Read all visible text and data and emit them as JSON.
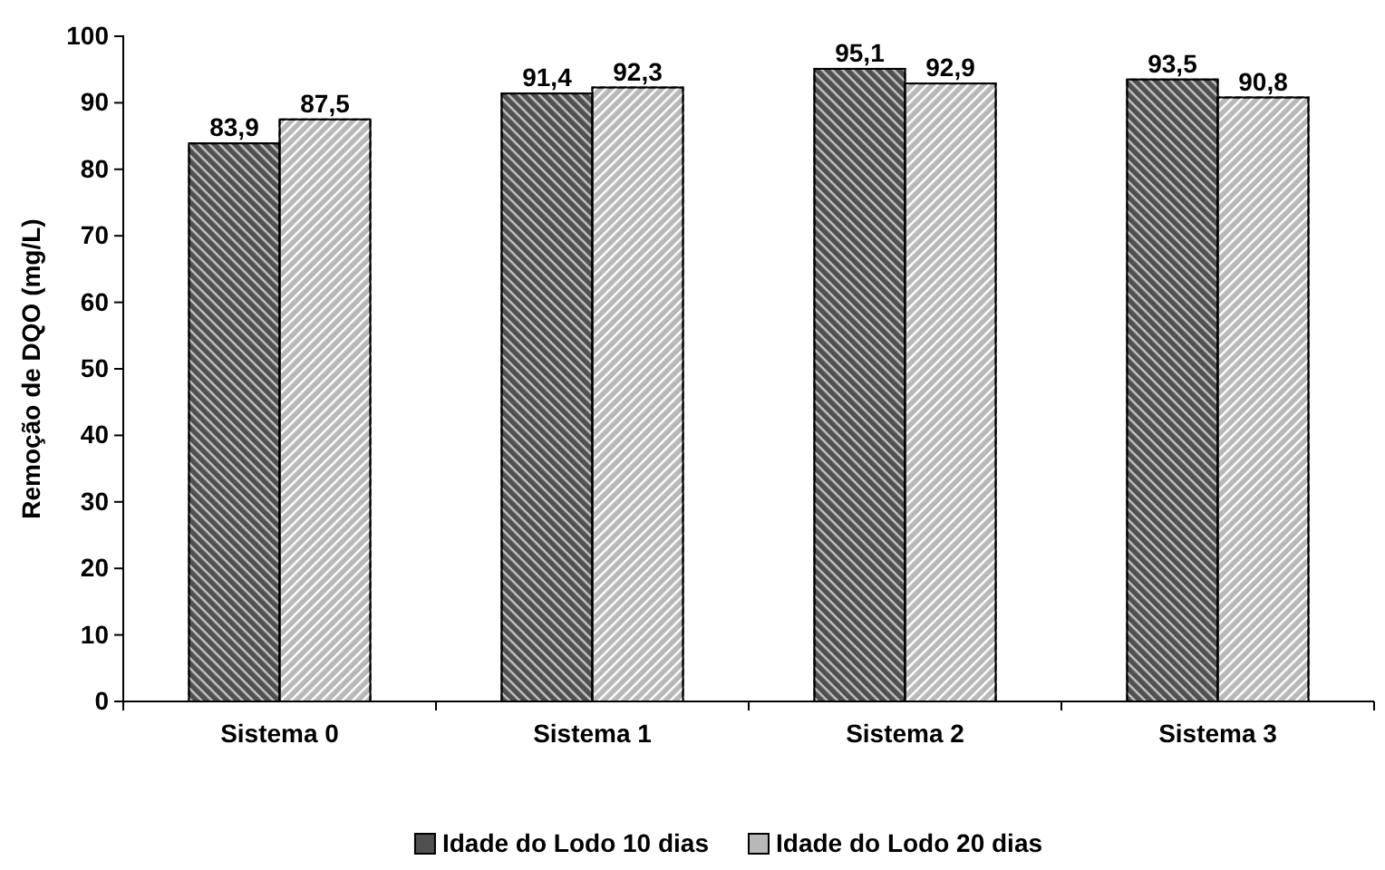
{
  "chart_data": {
    "type": "bar",
    "ylabel": "Remoção de DQO (mg/L)",
    "categories": [
      "Sistema 0",
      "Sistema 1",
      "Sistema 2",
      "Sistema 3"
    ],
    "series": [
      {
        "name": "Idade do Lodo 10 dias",
        "color": "#505050",
        "values": [
          83.9,
          91.4,
          95.1,
          93.5
        ],
        "value_labels": [
          "83,9",
          "91,4",
          "95,1",
          "93,5"
        ]
      },
      {
        "name": "Idade do Lodo 20 dias",
        "color": "#b8b8b8",
        "values": [
          87.5,
          92.3,
          92.9,
          90.8
        ],
        "value_labels": [
          "87,5",
          "92,3",
          "92,9",
          "90,8"
        ]
      }
    ],
    "ylim": [
      0,
      100
    ],
    "yticks": [
      0,
      10,
      20,
      30,
      40,
      50,
      60,
      70,
      80,
      90,
      100
    ],
    "grid": false,
    "legend": "bottom"
  }
}
